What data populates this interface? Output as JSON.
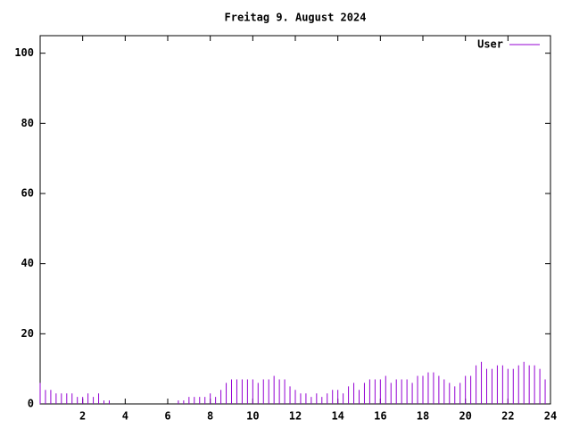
{
  "chart_data": {
    "type": "impulse",
    "title": "Freitag 9. August 2024",
    "xlim": [
      0,
      24
    ],
    "xticks": [
      2,
      4,
      6,
      8,
      10,
      12,
      14,
      16,
      18,
      20,
      22,
      24
    ],
    "ylim": [
      0,
      105
    ],
    "yticks": [
      0,
      20,
      40,
      60,
      80,
      100
    ],
    "legend": "top-right",
    "x": [
      0,
      0.25,
      0.5,
      0.75,
      1,
      1.25,
      1.5,
      1.75,
      2,
      2.25,
      2.5,
      2.75,
      3,
      3.25,
      3.5,
      3.75,
      4,
      4.25,
      4.5,
      4.75,
      5,
      5.25,
      5.5,
      5.75,
      6,
      6.25,
      6.5,
      6.75,
      7,
      7.25,
      7.5,
      7.75,
      8,
      8.25,
      8.5,
      8.75,
      9,
      9.25,
      9.5,
      9.75,
      10,
      10.25,
      10.5,
      10.75,
      11,
      11.25,
      11.5,
      11.75,
      12,
      12.25,
      12.5,
      12.75,
      13,
      13.25,
      13.5,
      13.75,
      14,
      14.25,
      14.5,
      14.75,
      15,
      15.25,
      15.5,
      15.75,
      16,
      16.25,
      16.5,
      16.75,
      17,
      17.25,
      17.5,
      17.75,
      18,
      18.25,
      18.5,
      18.75,
      19,
      19.25,
      19.5,
      19.75,
      20,
      20.25,
      20.5,
      20.75,
      21,
      21.25,
      21.5,
      21.75,
      22,
      22.25,
      22.5,
      22.75,
      23,
      23.25,
      23.5,
      23.75
    ],
    "series": [
      {
        "name": "User",
        "color": "#9400d3",
        "values": [
          6,
          4,
          4,
          3,
          3,
          3,
          3,
          2,
          2,
          3,
          2,
          3,
          1,
          1,
          0,
          0,
          0,
          0,
          0,
          0,
          0,
          0,
          0,
          0,
          0,
          0,
          1,
          1,
          2,
          2,
          2,
          2,
          3,
          2,
          4,
          6,
          7,
          7,
          7,
          7,
          7,
          6,
          7,
          7,
          8,
          7,
          7,
          5,
          4,
          3,
          3,
          2,
          3,
          2,
          3,
          4,
          4,
          3,
          5,
          6,
          4,
          6,
          7,
          7,
          7,
          8,
          6,
          7,
          7,
          7,
          6,
          8,
          8,
          9,
          9,
          8,
          7,
          6,
          5,
          6,
          8,
          8,
          11,
          12,
          10,
          10,
          11,
          11,
          10,
          10,
          11,
          12,
          11,
          11,
          10,
          7
        ]
      }
    ]
  }
}
